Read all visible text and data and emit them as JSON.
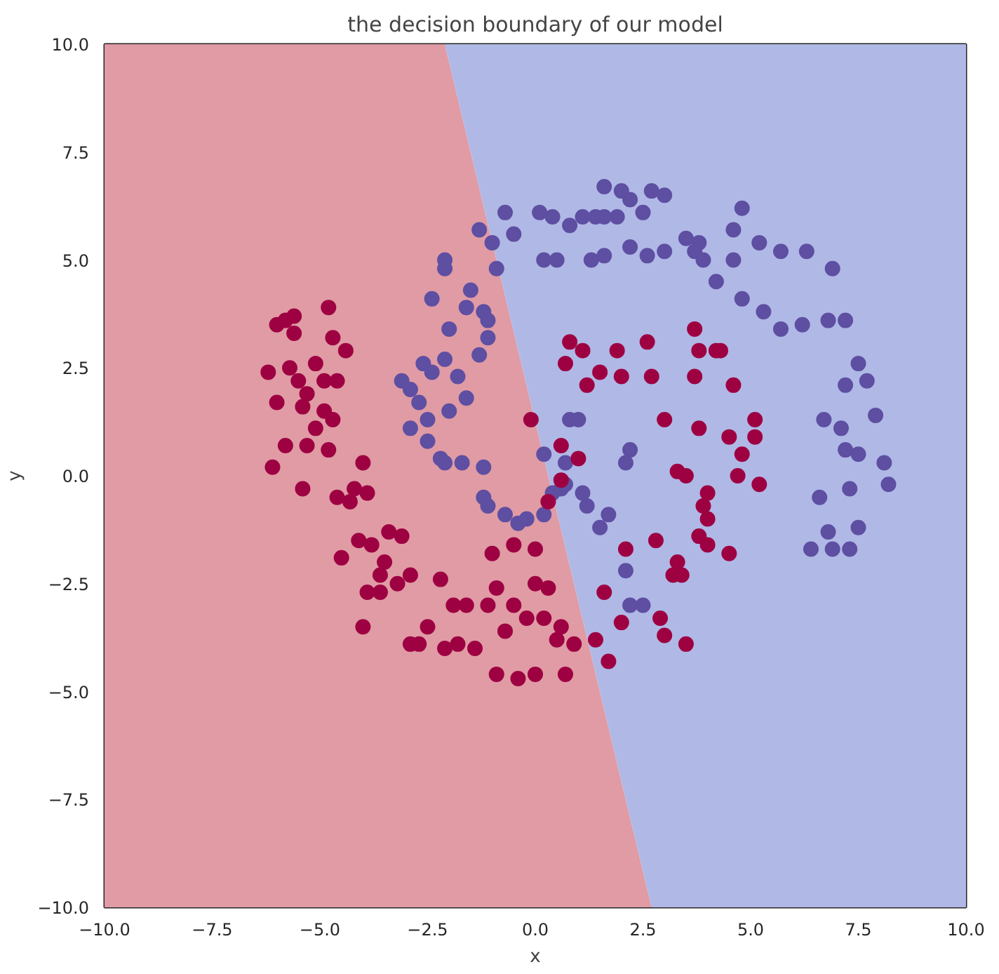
{
  "chart_data": {
    "type": "scatter",
    "title": "the decision boundary of our model",
    "xlabel": "x",
    "ylabel": "y",
    "xlim": [
      -10,
      10
    ],
    "ylim": [
      -10,
      10
    ],
    "xticks": [
      {
        "value": -10,
        "label": "−10.0"
      },
      {
        "value": -7.5,
        "label": "−7.5"
      },
      {
        "value": -5,
        "label": "−5.0"
      },
      {
        "value": -2.5,
        "label": "−2.5"
      },
      {
        "value": 0,
        "label": "0.0"
      },
      {
        "value": 2.5,
        "label": "2.5"
      },
      {
        "value": 5,
        "label": "5.0"
      },
      {
        "value": 7.5,
        "label": "7.5"
      },
      {
        "value": 10,
        "label": "10.0"
      }
    ],
    "yticks": [
      {
        "value": -10,
        "label": "−10.0"
      },
      {
        "value": -7.5,
        "label": "−7.5"
      },
      {
        "value": -5,
        "label": "−5.0"
      },
      {
        "value": -2.5,
        "label": "−2.5"
      },
      {
        "value": 0,
        "label": "0.0"
      },
      {
        "value": 2.5,
        "label": "2.5"
      },
      {
        "value": 5,
        "label": "5.0"
      },
      {
        "value": 7.5,
        "label": "7.5"
      },
      {
        "value": 10,
        "label": "10.0"
      }
    ],
    "grid": false,
    "marker": "circle",
    "series": [
      {
        "type": "area",
        "marker": "none",
        "color": "#e09ba5",
        "x": [
          -10,
          -2.1,
          2.7,
          -10
        ],
        "values": [
          10,
          10,
          -10,
          -10
        ]
      },
      {
        "type": "area",
        "marker": "none",
        "color": "#b0b8e6",
        "x": [
          -2.1,
          10,
          10,
          2.7
        ],
        "values": [
          10,
          10,
          -10,
          -10
        ]
      },
      {
        "color": "#5e4fa2",
        "x": [
          1.6,
          2.0,
          2.7,
          3.0,
          2.2,
          1.6,
          2.5,
          1.9,
          1.4,
          1.1,
          0.8,
          0.4,
          0.1,
          -0.7,
          -0.5,
          -1.0,
          -1.3,
          -0.9,
          0.2,
          0.5,
          1.3,
          1.6,
          2.2,
          2.6,
          3.0,
          3.5,
          3.8,
          3.7,
          3.9,
          4.6,
          4.8,
          4.6,
          5.2,
          5.7,
          6.3,
          6.9,
          4.2,
          4.8,
          5.3,
          5.7,
          6.2,
          6.8,
          7.2,
          7.5,
          7.2,
          7.7,
          7.9,
          7.5,
          7.1,
          6.7,
          7.2,
          8.1,
          7.3,
          6.6,
          7.5,
          6.4,
          8.2,
          6.8,
          6.9,
          7.3,
          -2.1,
          -2.1,
          -2.4,
          -1.5,
          -1.6,
          -1.2,
          -1.1,
          -1.1,
          -1.3,
          -2.0,
          -2.1,
          -2.6,
          -2.4,
          -1.8,
          -1.6,
          -2.0,
          -2.9,
          -3.1,
          -2.7,
          -2.5,
          -2.9,
          -2.5,
          -2.2,
          -1.7,
          -2.1,
          -1.2,
          -1.2,
          -1.1,
          -0.7,
          -0.4,
          -0.2,
          0.2,
          0.4,
          0.6,
          0.7,
          0.2,
          0.8,
          1.0,
          2.2,
          2.1,
          2.1,
          2.5,
          2.2,
          1.2,
          1.5,
          1.7,
          1.1,
          0.7
        ],
        "values": [
          6.7,
          6.6,
          6.6,
          6.5,
          6.4,
          6.0,
          6.1,
          6.0,
          6.0,
          6.0,
          5.8,
          6.0,
          6.1,
          6.1,
          5.6,
          5.4,
          5.7,
          4.8,
          5.0,
          5.0,
          5.0,
          5.1,
          5.3,
          5.1,
          5.2,
          5.5,
          5.4,
          5.2,
          5.0,
          5.7,
          6.2,
          5.0,
          5.4,
          5.2,
          5.2,
          4.8,
          4.5,
          4.1,
          3.8,
          3.4,
          3.5,
          3.6,
          3.6,
          2.6,
          2.1,
          2.2,
          1.4,
          0.5,
          1.1,
          1.3,
          0.6,
          0.3,
          -0.3,
          -0.5,
          -1.2,
          -1.7,
          -0.2,
          -1.3,
          -1.7,
          -1.7,
          5.0,
          4.8,
          4.1,
          4.3,
          3.9,
          3.8,
          3.6,
          3.2,
          2.8,
          3.4,
          2.7,
          2.6,
          2.4,
          2.3,
          1.8,
          1.5,
          2.0,
          2.2,
          1.7,
          1.3,
          1.1,
          0.8,
          0.4,
          0.3,
          0.3,
          0.2,
          -0.5,
          -0.7,
          -0.9,
          -1.1,
          -1.0,
          -0.9,
          -0.4,
          -0.3,
          0.3,
          0.5,
          1.3,
          1.3,
          0.6,
          0.3,
          -2.2,
          -3.0,
          -3.0,
          -0.7,
          -1.2,
          -0.9,
          -0.4,
          -0.2
        ]
      },
      {
        "color": "#9e0142",
        "x": [
          -5.6,
          -5.8,
          -6.0,
          -5.6,
          -4.8,
          -4.7,
          -4.4,
          -6.2,
          -5.7,
          -5.5,
          -5.1,
          -4.9,
          -4.6,
          -5.3,
          -6.0,
          -5.4,
          -4.9,
          -4.7,
          -5.1,
          -5.8,
          -5.3,
          -4.8,
          -6.1,
          -4.0,
          -4.2,
          -3.9,
          -5.4,
          -4.6,
          -4.3,
          -4.5,
          -4.1,
          -3.8,
          -3.4,
          -3.1,
          -3.5,
          -3.2,
          -2.9,
          -3.9,
          -3.6,
          -4.0,
          -3.6,
          -2.5,
          -2.2,
          -1.9,
          -1.6,
          -1.1,
          -0.9,
          -0.5,
          -0.2,
          0.2,
          0.6,
          -2.9,
          -2.7,
          -2.1,
          -1.8,
          -1.4,
          -0.9,
          -0.4,
          0.0,
          0.5,
          0.7,
          0.9,
          1.4,
          1.7,
          -1.0,
          -0.7,
          0.0,
          0.3,
          0.3,
          -0.5,
          -0.1,
          0.6,
          0.6,
          1.0,
          0.8,
          1.1,
          0.7,
          1.2,
          1.5,
          1.9,
          2.0,
          2.6,
          2.7,
          3.0,
          3.7,
          3.8,
          4.2,
          4.3,
          3.7,
          4.6,
          3.8,
          4.5,
          4.8,
          5.1,
          5.1,
          4.7,
          5.2,
          3.3,
          3.5,
          4.0,
          3.9,
          4.0,
          4.5,
          4.0,
          2.8,
          3.8,
          3.3,
          3.4,
          3.2,
          3.0,
          3.5,
          2.9,
          2.1,
          1.6,
          2.0,
          0.0
        ],
        "values": [
          3.7,
          3.6,
          3.5,
          3.3,
          3.9,
          3.2,
          2.9,
          2.4,
          2.5,
          2.2,
          2.6,
          2.2,
          2.2,
          1.9,
          1.7,
          1.6,
          1.5,
          1.3,
          1.1,
          0.7,
          0.7,
          0.6,
          0.2,
          0.3,
          -0.3,
          -0.4,
          -0.3,
          -0.5,
          -0.6,
          -1.9,
          -1.5,
          -1.6,
          -1.3,
          -1.4,
          -2.0,
          -2.5,
          -2.3,
          -2.7,
          -2.7,
          -3.5,
          -2.3,
          -3.5,
          -2.4,
          -3.0,
          -3.0,
          -3.0,
          -2.6,
          -3.0,
          -3.3,
          -3.3,
          -3.5,
          -3.9,
          -3.9,
          -4.0,
          -3.9,
          -4.0,
          -4.6,
          -4.7,
          -4.6,
          -3.8,
          -4.6,
          -3.9,
          -3.8,
          -4.3,
          -1.8,
          -3.6,
          -1.7,
          -0.6,
          -2.6,
          -1.6,
          1.3,
          0.7,
          -0.1,
          0.4,
          3.1,
          2.9,
          2.6,
          2.1,
          2.4,
          2.9,
          2.3,
          3.1,
          2.3,
          1.3,
          3.4,
          2.9,
          2.9,
          2.9,
          2.3,
          2.1,
          1.1,
          0.9,
          0.5,
          1.3,
          0.9,
          0.0,
          -0.2,
          0.1,
          0.0,
          -0.4,
          -0.7,
          -1.0,
          -1.8,
          -1.6,
          -1.5,
          -1.4,
          -2.0,
          -2.3,
          -2.3,
          -3.7,
          -3.9,
          -3.3,
          -1.7,
          -2.7,
          -3.4,
          -2.5
        ]
      }
    ]
  }
}
